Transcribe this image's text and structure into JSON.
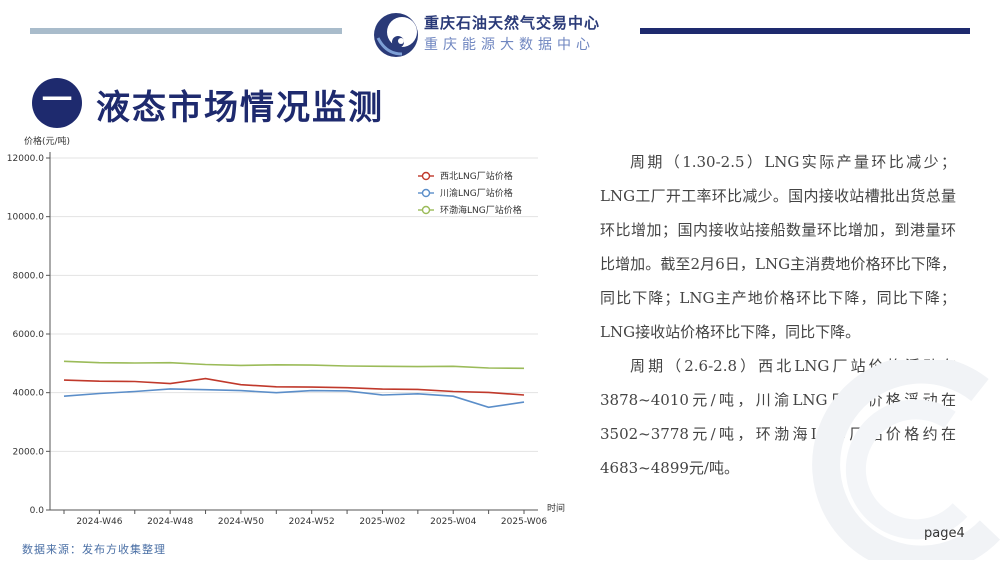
{
  "header": {
    "org_name": "重庆石油天然气交易中心",
    "org_sub": "重庆能源大数据中心"
  },
  "section": {
    "number": "一",
    "title": "液态市场情况监测"
  },
  "chart_data": {
    "type": "line",
    "ylabel": "价格(元/吨)",
    "xlabel": "时间",
    "ylim": [
      0,
      12000
    ],
    "yticks": [
      "0.0",
      "2000.0",
      "4000.0",
      "6000.0",
      "8000.0",
      "10000.0",
      "12000.0"
    ],
    "x": [
      "2024-W45",
      "2024-W46",
      "2024-W47",
      "2024-W48",
      "2024-W49",
      "2024-W50",
      "2024-W51",
      "2024-W52",
      "2025-W01",
      "2025-W02",
      "2025-W03",
      "2025-W04",
      "2025-W05",
      "2025-W06"
    ],
    "xticks": [
      "2024-W46",
      "2024-W48",
      "2024-W50",
      "2024-W52",
      "2025-W02",
      "2025-W04",
      "2025-W06"
    ],
    "grid": true,
    "legend_position": "top-right",
    "series": [
      {
        "name": "西北LNG厂站价格",
        "color": "#c0392b",
        "values": [
          4430,
          4390,
          4380,
          4310,
          4480,
          4270,
          4200,
          4190,
          4170,
          4120,
          4110,
          4040,
          4010,
          3920
        ]
      },
      {
        "name": "川渝LNG厂站价格",
        "color": "#5b8ec9",
        "values": [
          3880,
          3970,
          4040,
          4130,
          4100,
          4070,
          4000,
          4070,
          4060,
          3920,
          3960,
          3880,
          3500,
          3680
        ]
      },
      {
        "name": "环渤海LNG厂站价格",
        "color": "#9bbb59",
        "values": [
          5070,
          5020,
          5010,
          5020,
          4960,
          4930,
          4950,
          4940,
          4910,
          4900,
          4890,
          4900,
          4840,
          4830
        ]
      }
    ]
  },
  "description": {
    "p1": "周期（1.30-2.5）LNG实际产量环比减少；LNG工厂开工率环比减少。国内接收站槽批出货总量环比增加；国内接收站接船数量环比增加，到港量环比增加。截至2月6日，LNG主消费地价格环比下降，同比下降；LNG主产地价格环比下降，同比下降；LNG接收站价格环比下降，同比下降。",
    "p2": "周期（2.6-2.8）西北LNG厂站价格浮动在3878~4010元/吨，川渝LNG厂站价格浮动在3502~3778元/吨，环渤海LNG厂站价格约在4683~4899元/吨。"
  },
  "footer": {
    "source": "数据来源：发布方收集整理",
    "page": "page4"
  }
}
